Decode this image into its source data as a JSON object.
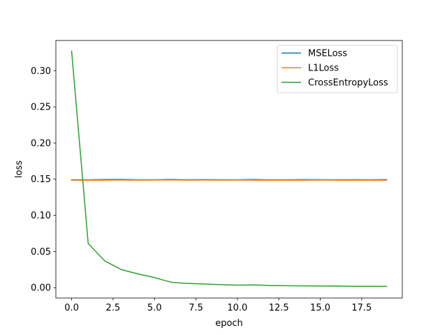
{
  "chart_data": {
    "type": "line",
    "title": "",
    "xlabel": "epoch",
    "ylabel": "loss",
    "xlim": [
      -0.95,
      19.95
    ],
    "ylim": [
      -0.0143,
      0.3418
    ],
    "xticks": [
      0.0,
      2.5,
      5.0,
      7.5,
      10.0,
      12.5,
      15.0,
      17.5
    ],
    "xtick_labels": [
      "0.0",
      "2.5",
      "5.0",
      "7.5",
      "10.0",
      "12.5",
      "15.0",
      "17.5"
    ],
    "yticks": [
      0.0,
      0.05,
      0.1,
      0.15,
      0.2,
      0.25,
      0.3
    ],
    "ytick_labels": [
      "0.00",
      "0.05",
      "0.10",
      "0.15",
      "0.20",
      "0.25",
      "0.30"
    ],
    "grid": false,
    "legend_position": "top-right",
    "x": [
      0,
      1,
      2,
      3,
      4,
      5,
      6,
      7,
      8,
      9,
      10,
      11,
      12,
      13,
      14,
      15,
      16,
      17,
      18,
      19
    ],
    "series": [
      {
        "name": "MSELoss",
        "color": "#1f77b4",
        "values": [
          0.1492,
          0.1492,
          0.1495,
          0.1496,
          0.1491,
          0.1492,
          0.1496,
          0.1492,
          0.1494,
          0.1491,
          0.1492,
          0.1495,
          0.1491,
          0.1492,
          0.1494,
          0.1493,
          0.1492,
          0.1493,
          0.1492,
          0.1494
        ]
      },
      {
        "name": "L1Loss",
        "color": "#ff7f0e",
        "values": [
          0.1486,
          0.1487,
          0.1487,
          0.1488,
          0.1487,
          0.1488,
          0.1489,
          0.1487,
          0.1488,
          0.1487,
          0.1488,
          0.1487,
          0.1487,
          0.1487,
          0.1487,
          0.1488,
          0.1487,
          0.1487,
          0.1487,
          0.1486
        ]
      },
      {
        "name": "CrossEntropyLoss",
        "color": "#2ca02c",
        "values": [
          0.327,
          0.061,
          0.037,
          0.025,
          0.019,
          0.014,
          0.0075,
          0.0058,
          0.0051,
          0.0042,
          0.0036,
          0.0038,
          0.003,
          0.0027,
          0.0025,
          0.0022,
          0.0024,
          0.0019,
          0.0019,
          0.0018
        ]
      }
    ]
  }
}
